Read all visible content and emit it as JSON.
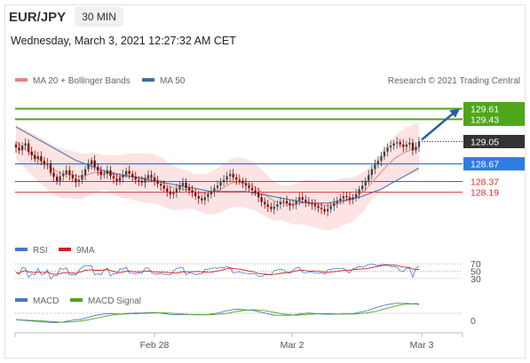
{
  "header": {
    "symbol": "EUR/JPY",
    "timeframe": "30 MIN",
    "datetime": "Wednesday, March 3, 2021 12:27:32 AM CET"
  },
  "legend": {
    "ma20": "MA 20 + Bollinger Bands",
    "ma50": "MA 50",
    "copyright": "Research © 2021 Trading Central",
    "rsi": "RSI",
    "rsi_ma": "9MA",
    "macd": "MACD",
    "macd_signal": "MACD Signal"
  },
  "colors": {
    "ma20": "#f08080",
    "band_fill": "#fde3e3",
    "ma50": "#3f6fa8",
    "green": "#4ea71b",
    "blue": "#2f7de1",
    "red": "#e02c2c",
    "candle_up": "#444444",
    "candle_down": "#8b0000",
    "arrow": "#2a5fa8",
    "rsi": "#4a78c8",
    "rsi_ma": "#d02020",
    "macd": "#4a78c8",
    "macd_signal": "#4ea71b"
  },
  "chart_data": {
    "type": "candlestick",
    "x_labels": [
      "Feb 28",
      "Mar 2",
      "Mar 3"
    ],
    "ylim": [
      127.5,
      129.95
    ],
    "close": [
      128.95,
      128.9,
      128.98,
      129.02,
      128.88,
      128.82,
      128.75,
      128.8,
      128.72,
      128.66,
      128.68,
      128.52,
      128.45,
      128.38,
      128.46,
      128.5,
      128.56,
      128.48,
      128.42,
      128.36,
      128.4,
      128.48,
      128.58,
      128.66,
      128.73,
      128.62,
      128.55,
      128.48,
      128.5,
      128.56,
      128.46,
      128.42,
      128.38,
      128.44,
      128.48,
      128.55,
      128.5,
      128.45,
      128.4,
      128.38,
      128.35,
      128.42,
      128.48,
      128.44,
      128.38,
      128.33,
      128.3,
      128.25,
      128.2,
      128.15,
      128.18,
      128.24,
      128.3,
      128.35,
      128.26,
      128.22,
      128.18,
      128.12,
      128.08,
      128.05,
      128.1,
      128.15,
      128.2,
      128.26,
      128.3,
      128.36,
      128.4,
      128.46,
      128.5,
      128.44,
      128.4,
      128.38,
      128.34,
      128.3,
      128.26,
      128.22,
      128.18,
      128.1,
      128.02,
      127.98,
      127.94,
      127.9,
      127.94,
      127.98,
      128.02,
      128.04,
      128.0,
      127.96,
      127.98,
      128.04,
      128.1,
      128.06,
      128.02,
      128.0,
      127.98,
      127.95,
      127.92,
      127.9,
      127.86,
      127.9,
      127.95,
      128.0,
      128.04,
      128.08,
      128.12,
      128.1,
      128.06,
      128.1,
      128.16,
      128.24,
      128.3,
      128.38,
      128.48,
      128.58,
      128.66,
      128.72,
      128.8,
      128.88,
      128.95,
      128.98,
      129.02,
      129.04,
      129.0,
      128.96,
      129.0,
      129.03,
      128.9,
      128.96,
      129.05
    ],
    "ma20": [
      129.05,
      129.0,
      128.96,
      128.92,
      128.88,
      128.84,
      128.8,
      128.76,
      128.72,
      128.68,
      128.64,
      128.6,
      128.57,
      128.54,
      128.52,
      128.5,
      128.5,
      128.49,
      128.48,
      128.47,
      128.46,
      128.46,
      128.47,
      128.49,
      128.51,
      128.52,
      128.52,
      128.52,
      128.52,
      128.52,
      128.5,
      128.49,
      128.47,
      128.46,
      128.46,
      128.46,
      128.46,
      128.45,
      128.45,
      128.44,
      128.43,
      128.43,
      128.43,
      128.42,
      128.41,
      128.39,
      128.37,
      128.34,
      128.31,
      128.28,
      128.26,
      128.25,
      128.24,
      128.24,
      128.23,
      128.22,
      128.21,
      128.19,
      128.18,
      128.17,
      128.16,
      128.16,
      128.17,
      128.19,
      128.21,
      128.24,
      128.27,
      128.3,
      128.33,
      128.35,
      128.36,
      128.36,
      128.35,
      128.34,
      128.32,
      128.3,
      128.27,
      128.23,
      128.19,
      128.15,
      128.11,
      128.07,
      128.04,
      128.02,
      128.01,
      128.0,
      127.99,
      127.98,
      127.98,
      127.99,
      128.0,
      128.01,
      128.01,
      128.01,
      128.0,
      127.99,
      127.98,
      127.97,
      127.96,
      127.96,
      127.97,
      127.98,
      127.99,
      128.01,
      128.03,
      128.04,
      128.05,
      128.07,
      128.1,
      128.14,
      128.18,
      128.23,
      128.29,
      128.35,
      128.41,
      128.47,
      128.53,
      128.59,
      128.65,
      128.7,
      128.75,
      128.79,
      128.82,
      128.85,
      128.88,
      128.9,
      128.92,
      128.94,
      128.95
    ],
    "ma50": [
      129.3,
      129.27,
      129.24,
      129.21,
      129.18,
      129.15,
      129.12,
      129.09,
      129.06,
      129.03,
      129.0,
      128.97,
      128.94,
      128.91,
      128.88,
      128.85,
      128.82,
      128.79,
      128.76,
      128.73,
      128.71,
      128.69,
      128.67,
      128.65,
      128.63,
      128.61,
      128.59,
      128.57,
      128.55,
      128.53,
      128.52,
      128.51,
      128.5,
      128.49,
      128.48,
      128.47,
      128.46,
      128.45,
      128.44,
      128.43,
      128.42,
      128.41,
      128.4,
      128.39,
      128.38,
      128.37,
      128.36,
      128.35,
      128.34,
      128.33,
      128.32,
      128.31,
      128.3,
      128.29,
      128.28,
      128.27,
      128.26,
      128.25,
      128.24,
      128.23,
      128.22,
      128.21,
      128.2,
      128.2,
      128.2,
      128.2,
      128.2,
      128.2,
      128.2,
      128.2,
      128.2,
      128.2,
      128.2,
      128.2,
      128.19,
      128.18,
      128.17,
      128.16,
      128.15,
      128.14,
      128.13,
      128.12,
      128.11,
      128.1,
      128.09,
      128.08,
      128.07,
      128.06,
      128.05,
      128.04,
      128.03,
      128.02,
      128.01,
      128.0,
      128.0,
      128.0,
      128.0,
      128.0,
      128.0,
      128.0,
      128.01,
      128.02,
      128.03,
      128.04,
      128.05,
      128.06,
      128.07,
      128.08,
      128.09,
      128.1,
      128.12,
      128.14,
      128.16,
      128.18,
      128.2,
      128.22,
      128.24,
      128.27,
      128.3,
      128.33,
      128.36,
      128.39,
      128.42,
      128.45,
      128.48,
      128.51,
      128.54,
      128.57,
      128.6
    ],
    "bb_width": 0.42,
    "resistance": [
      129.61,
      129.43
    ],
    "last_price": 129.05,
    "pivot": 128.67,
    "support": [
      128.37,
      128.19
    ],
    "arrow": {
      "from": 129.05,
      "to": 129.61
    },
    "rsi_levels": [
      70,
      50,
      30
    ],
    "macd_levels": [
      0
    ]
  }
}
